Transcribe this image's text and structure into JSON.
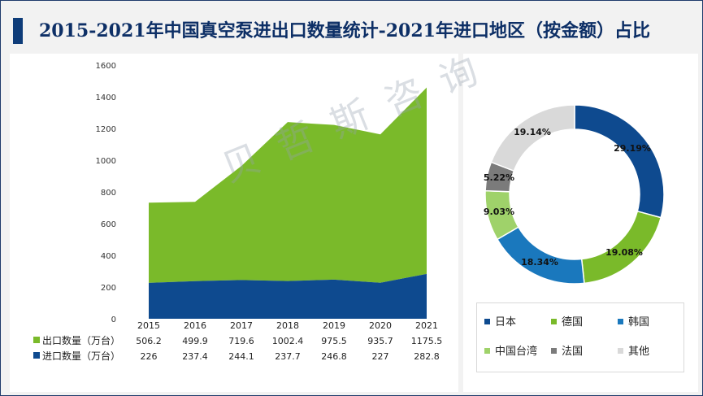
{
  "title": "2015-2021年中国真空泵进出口数量统计-2021年进口地区（按金额）占比",
  "watermark": "贝哲斯咨询",
  "colors": {
    "export": "#7aba2a",
    "import": "#0e4a8f",
    "title": "#0d2f66"
  },
  "chart_data": [
    {
      "type": "area",
      "stacked": true,
      "x": [
        "2015",
        "2016",
        "2017",
        "2018",
        "2019",
        "2020",
        "2021"
      ],
      "ylim": [
        0,
        1600
      ],
      "yticks": [
        0,
        200,
        400,
        600,
        800,
        1000,
        1200,
        1400,
        1600
      ],
      "ytick_labels": [
        "0",
        "200",
        "400",
        "600",
        "800",
        "1000",
        "1200",
        "1400",
        "1600"
      ],
      "series": [
        {
          "name": "进口数量（万台）",
          "color": "#0e4a8f",
          "values": [
            226,
            237.4,
            244.1,
            237.7,
            246.8,
            227,
            282.8
          ],
          "labels": [
            "226",
            "237.4",
            "244.1",
            "237.7",
            "246.8",
            "227",
            "282.8"
          ]
        },
        {
          "name": "出口数量（万台）",
          "color": "#7aba2a",
          "values": [
            506.2,
            499.9,
            719.6,
            1002.4,
            975.5,
            935.7,
            1175.5
          ],
          "labels": [
            "506.2",
            "499.9",
            "719.6",
            "1002.4",
            "975.5",
            "935.7",
            "1175.5"
          ]
        }
      ],
      "table_rows": [
        "出口数量（万台）",
        "进口数量（万台）"
      ]
    },
    {
      "type": "pie",
      "donut": true,
      "slices": [
        {
          "name": "日本",
          "value": 29.19,
          "label": "29.19%",
          "color": "#0e4a8f"
        },
        {
          "name": "德国",
          "value": 19.08,
          "label": "19.08%",
          "color": "#7aba2a"
        },
        {
          "name": "韩国",
          "value": 18.34,
          "label": "18.34%",
          "color": "#1a78bd"
        },
        {
          "name": "中国台湾",
          "value": 9.03,
          "label": "9.03%",
          "color": "#9fd26a"
        },
        {
          "name": "法国",
          "value": 5.22,
          "label": "5.22%",
          "color": "#7b7b7b"
        },
        {
          "name": "其他",
          "value": 19.14,
          "label": "19.14%",
          "color": "#d9d9d9"
        }
      ],
      "legend_placement": "bottom"
    }
  ]
}
